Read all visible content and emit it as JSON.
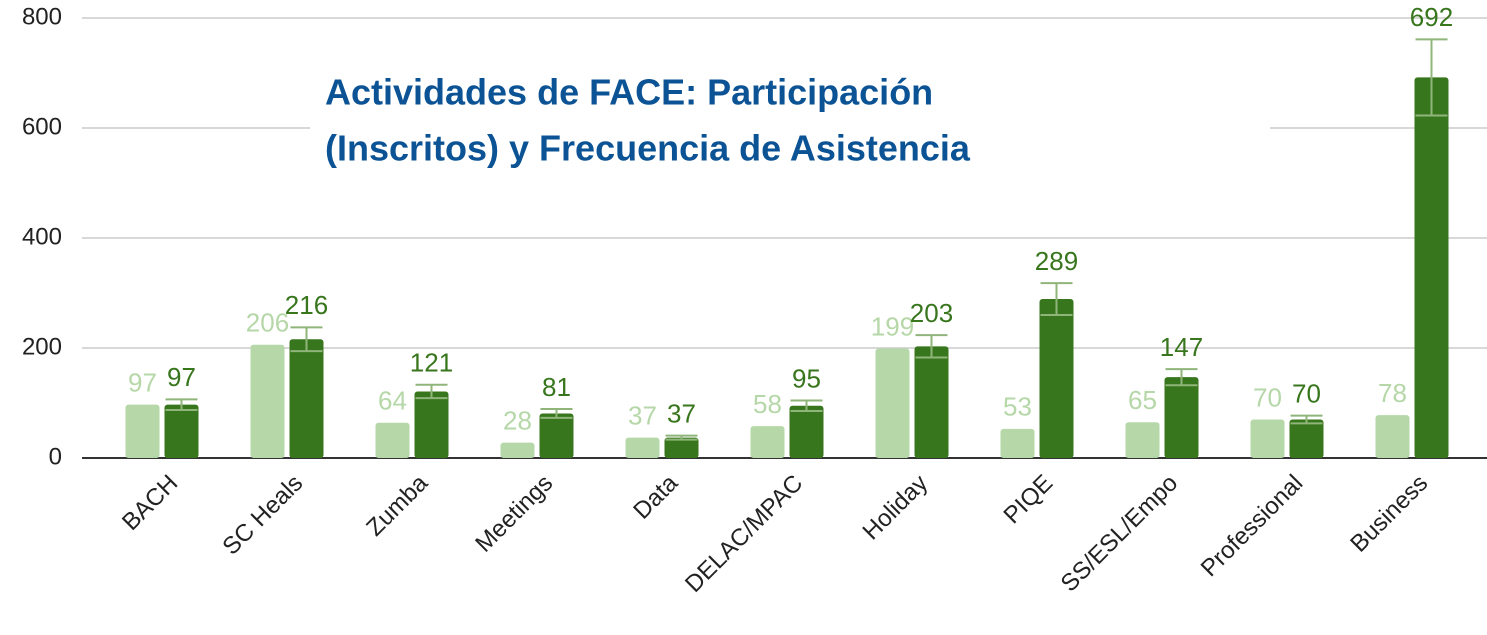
{
  "chart_data": {
    "type": "bar",
    "title": [
      "Actividades de FACE: Participación",
      "(Inscritos) y Frecuencia de Asistencia"
    ],
    "categories": [
      "BACH",
      "SC Heals",
      "Zumba",
      "Meetings",
      "Data",
      "DELAC/MPAC",
      "Holiday",
      "PIQE",
      "SS/ESL/Empo",
      "Professional",
      "Business"
    ],
    "series": [
      {
        "color": "#b6d7a8",
        "values": [
          97,
          206,
          64,
          28,
          37,
          58,
          199,
          53,
          65,
          70,
          78
        ]
      },
      {
        "color": "#38761d",
        "values": [
          97,
          216,
          121,
          81,
          37,
          95,
          203,
          289,
          147,
          70,
          692
        ],
        "errors": [
          9.7,
          21.6,
          12.1,
          8.1,
          3.7,
          9.5,
          20.3,
          28.9,
          14.7,
          7,
          69.2
        ],
        "error_color": "#8fb57a"
      }
    ],
    "ylim": [
      0,
      800
    ],
    "yticks": [
      0,
      200,
      400,
      600,
      800
    ],
    "grid": true
  }
}
